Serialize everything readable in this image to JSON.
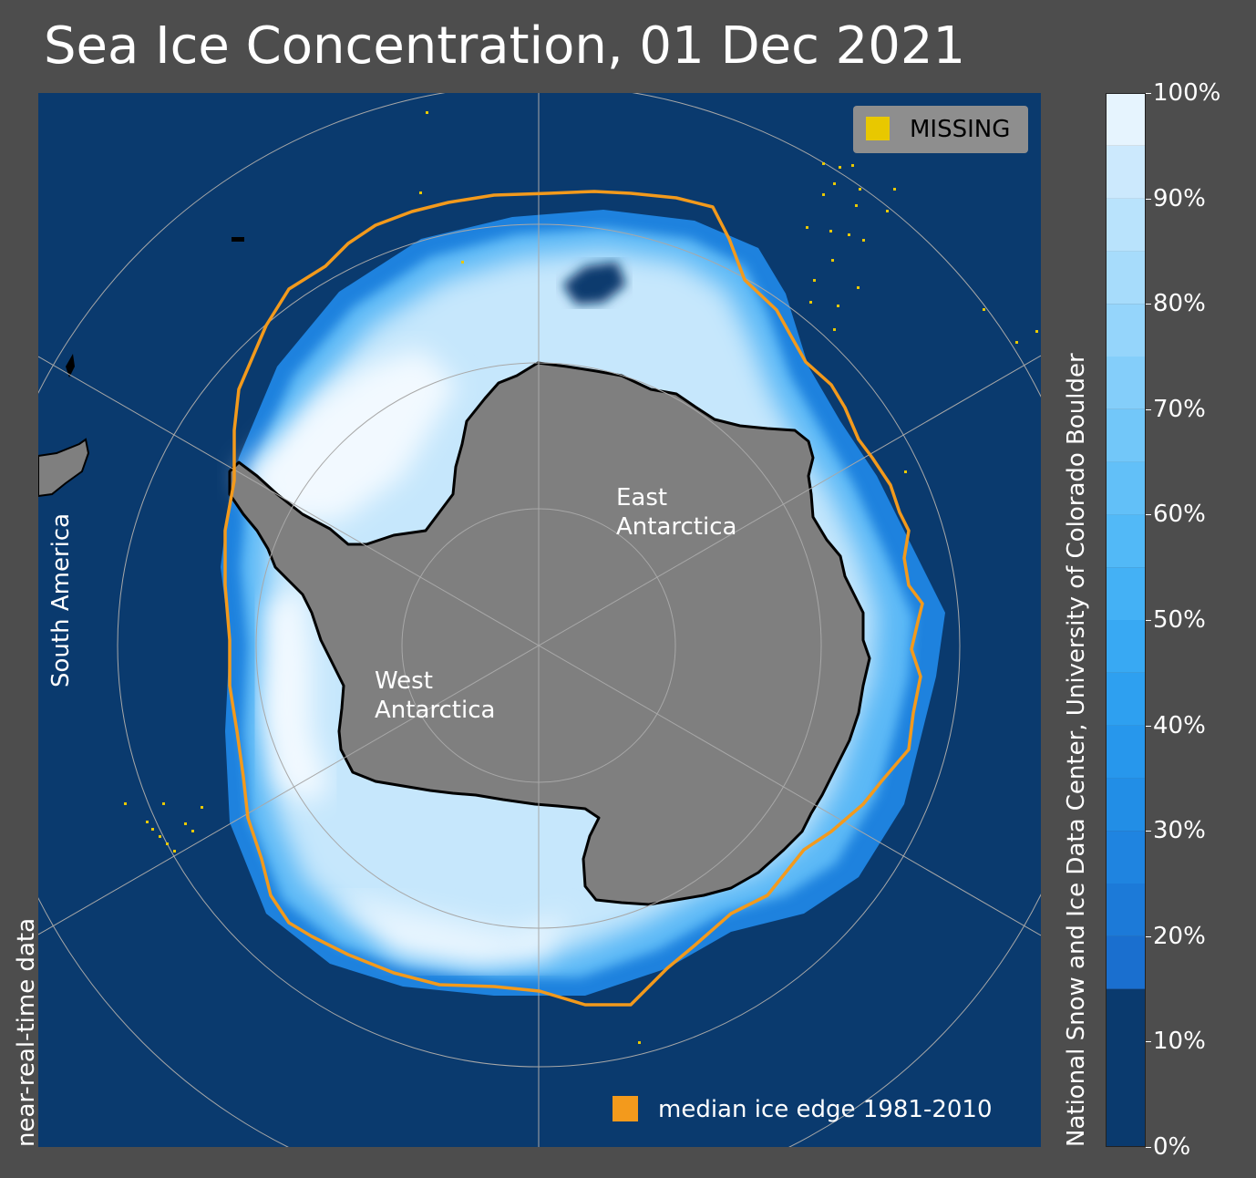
{
  "title": "Sea Ice Concentration, 01 Dec 2021",
  "legend": {
    "missing_label": "MISSING",
    "missing_color": "#e8c800",
    "median_label": "median ice edge 1981-2010",
    "median_color": "#f39a1c"
  },
  "labels": {
    "east": [
      "East",
      "Antarctica"
    ],
    "west": [
      "West",
      "Antarctica"
    ],
    "south_america": "South America",
    "near_real_time": "near-real-time data",
    "credit": "National Snow and Ice Data Center, University of Colorado Boulder"
  },
  "colorbar": {
    "ticks": [
      "0%",
      "10%",
      "20%",
      "30%",
      "40%",
      "50%",
      "60%",
      "70%",
      "80%",
      "90%",
      "100%"
    ],
    "tick_values": [
      0,
      10,
      20,
      30,
      40,
      50,
      60,
      70,
      80,
      90,
      100
    ],
    "bands": [
      {
        "from": 0,
        "to": 15,
        "color": "#0a3a6e"
      },
      {
        "from": 15,
        "to": 20,
        "color": "#1a6fcf"
      },
      {
        "from": 20,
        "to": 25,
        "color": "#1c7ad8"
      },
      {
        "from": 25,
        "to": 30,
        "color": "#1f84e0"
      },
      {
        "from": 30,
        "to": 35,
        "color": "#228ee6"
      },
      {
        "from": 35,
        "to": 40,
        "color": "#2797ec"
      },
      {
        "from": 40,
        "to": 45,
        "color": "#2ea0f0"
      },
      {
        "from": 45,
        "to": 50,
        "color": "#38a9f3"
      },
      {
        "from": 50,
        "to": 55,
        "color": "#44b1f5"
      },
      {
        "from": 55,
        "to": 60,
        "color": "#52b9f7"
      },
      {
        "from": 60,
        "to": 65,
        "color": "#62c0f8"
      },
      {
        "from": 65,
        "to": 70,
        "color": "#72c7f9"
      },
      {
        "from": 70,
        "to": 75,
        "color": "#84cefa"
      },
      {
        "from": 75,
        "to": 80,
        "color": "#95d5fb"
      },
      {
        "from": 80,
        "to": 85,
        "color": "#a7dcfb"
      },
      {
        "from": 85,
        "to": 90,
        "color": "#b9e3fc"
      },
      {
        "from": 90,
        "to": 95,
        "color": "#cce9fd"
      },
      {
        "from": 95,
        "to": 100,
        "color": "#e6f4fe"
      }
    ]
  },
  "colors": {
    "ocean": "#0a3a6e",
    "land": "#7f7f7f",
    "coast": "#000000",
    "grid": "#a8a8a8"
  }
}
